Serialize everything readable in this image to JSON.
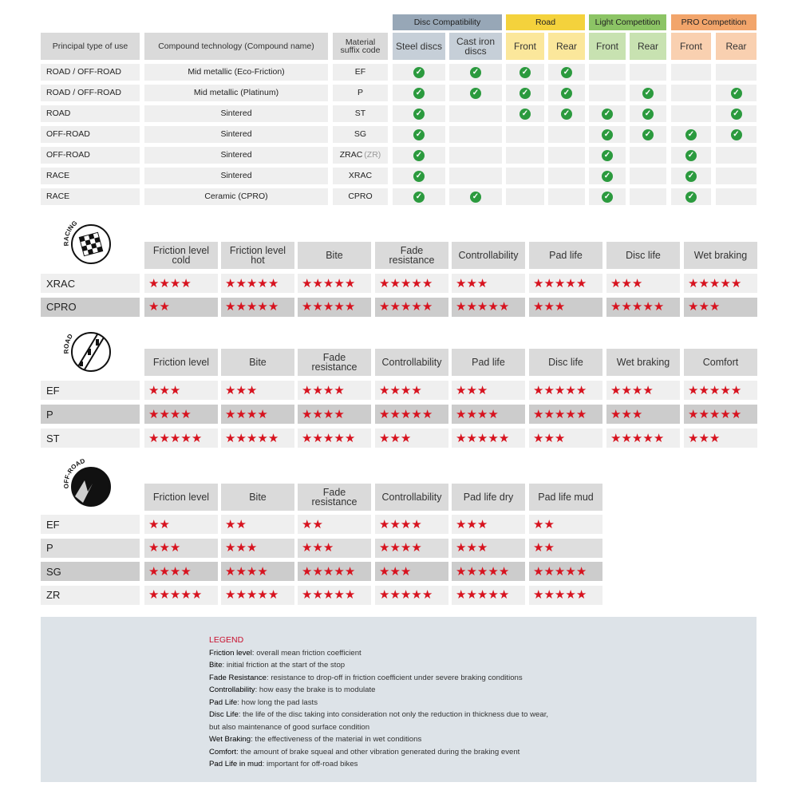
{
  "compatibility_table": {
    "group_headers": [
      {
        "label": "Disc Compatibility",
        "color": "#97a7b7",
        "sub_color": "#c6cfd8"
      },
      {
        "label": "Road",
        "color": "#f4d23c",
        "sub_color": "#fbe79b"
      },
      {
        "label": "Light Competition",
        "color": "#8cc465",
        "sub_color": "#c8e2b1"
      },
      {
        "label": "PRO Competition",
        "color": "#f2a56b",
        "sub_color": "#f9d0b0"
      }
    ],
    "column_headers": [
      "Principal type of use",
      "Compound technology (Compound name)",
      "Material suffix code"
    ],
    "sub_headers": [
      "Steel discs",
      "Cast iron discs",
      "Front",
      "Rear",
      "Front",
      "Rear",
      "Front",
      "Rear"
    ],
    "rows": [
      {
        "type": "ROAD / OFF-ROAD",
        "compound": "Mid metallic (Eco-Friction)",
        "code": "EF",
        "checks": [
          true,
          true,
          true,
          true,
          false,
          false,
          false,
          false
        ]
      },
      {
        "type": "ROAD / OFF-ROAD",
        "compound": "Mid metallic (Platinum)",
        "code": "P",
        "checks": [
          true,
          true,
          true,
          true,
          false,
          true,
          false,
          true
        ]
      },
      {
        "type": "ROAD",
        "compound": "Sintered",
        "code": "ST",
        "checks": [
          true,
          false,
          true,
          true,
          true,
          true,
          false,
          true
        ]
      },
      {
        "type": "OFF-ROAD",
        "compound": "Sintered",
        "code": "SG",
        "checks": [
          true,
          false,
          false,
          false,
          true,
          true,
          true,
          true
        ]
      },
      {
        "type": "OFF-ROAD",
        "compound": "Sintered",
        "code": "ZRAC",
        "code_alias": "(ZR)",
        "checks": [
          true,
          false,
          false,
          false,
          true,
          false,
          true,
          false
        ]
      },
      {
        "type": "RACE",
        "compound": "Sintered",
        "code": "XRAC",
        "checks": [
          true,
          false,
          false,
          false,
          true,
          false,
          true,
          false
        ]
      },
      {
        "type": "RACE",
        "compound": "Ceramic (CPRO)",
        "code": "CPRO",
        "checks": [
          true,
          true,
          false,
          false,
          true,
          false,
          true,
          false
        ]
      }
    ],
    "check_color": "#2b9a3e"
  },
  "rating_sections": [
    {
      "icon": "racing-flag-icon",
      "logo_text": "RACING",
      "columns": [
        "Friction level cold",
        "Friction level hot",
        "Bite",
        "Fade resistance",
        "Controllability",
        "Pad life",
        "Disc life",
        "Wet braking"
      ],
      "rows": [
        {
          "label": "XRAC",
          "shade": "lt",
          "ratings": [
            4,
            5,
            5,
            5,
            3,
            5,
            3,
            5
          ]
        },
        {
          "label": "CPRO",
          "shade": "dk",
          "ratings": [
            2,
            5,
            5,
            5,
            5,
            3,
            5,
            3
          ]
        }
      ]
    },
    {
      "icon": "road-icon",
      "logo_text": "ROAD",
      "columns": [
        "Friction level",
        "Bite",
        "Fade resistance",
        "Controllability",
        "Pad life",
        "Disc life",
        "Wet braking",
        "Comfort"
      ],
      "rows": [
        {
          "label": "EF",
          "shade": "lt",
          "ratings": [
            3,
            3,
            4,
            4,
            3,
            5,
            4,
            5
          ]
        },
        {
          "label": "P",
          "shade": "dk",
          "ratings": [
            4,
            4,
            4,
            5,
            4,
            5,
            3,
            5
          ]
        },
        {
          "label": "ST",
          "shade": "lt",
          "ratings": [
            5,
            5,
            5,
            3,
            5,
            3,
            5,
            3
          ]
        }
      ]
    },
    {
      "icon": "off-road-icon",
      "logo_text": "OFF-ROAD",
      "columns": [
        "Friction level",
        "Bite",
        "Fade resistance",
        "Controllability",
        "Pad life dry",
        "Pad life mud"
      ],
      "rows": [
        {
          "label": "EF",
          "shade": "lt",
          "ratings": [
            2,
            2,
            2,
            4,
            3,
            2
          ]
        },
        {
          "label": "P",
          "shade": "md",
          "ratings": [
            3,
            3,
            3,
            4,
            3,
            2
          ]
        },
        {
          "label": "SG",
          "shade": "dk",
          "ratings": [
            4,
            4,
            5,
            3,
            5,
            5
          ]
        },
        {
          "label": "ZR",
          "shade": "lt",
          "ratings": [
            5,
            5,
            5,
            5,
            5,
            5
          ]
        }
      ]
    }
  ],
  "star_color": "#d7131f",
  "legend": {
    "title": "LEGEND",
    "items": [
      {
        "term": "Friction level",
        "desc": ": overall mean friction coefficient"
      },
      {
        "term": "Bite",
        "desc": ": initial friction at the start of the stop"
      },
      {
        "term": "Fade Resistance",
        "desc": ": resistance to drop-off in friction coefficient under severe braking conditions"
      },
      {
        "term": "Controllability",
        "desc": ": how easy the brake is to modulate"
      },
      {
        "term": "Pad Life",
        "desc": ": how long the pad lasts"
      },
      {
        "term": "Disc Life",
        "desc": ": the life of the disc taking into consideration not only the reduction in thickness due to wear,"
      },
      {
        "term": "",
        "desc": "but also maintenance of good surface condition"
      },
      {
        "term": "Wet Braking",
        "desc": ": the effectiveness of the material in wet conditions"
      },
      {
        "term": "Comfort",
        "desc": ": the amount of brake squeal and other vibration generated during the braking event"
      },
      {
        "term": "Pad Life in mud",
        "desc": ": important for off-road bikes"
      }
    ]
  }
}
